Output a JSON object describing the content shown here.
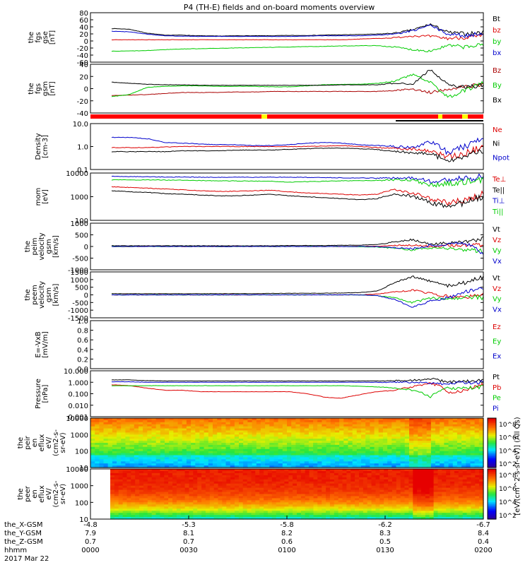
{
  "title": "P4 (TH-E) fields and on-board moments overview",
  "chart_data": [
    {
      "type": "line",
      "panel": "the fgs gse",
      "ylabel": [
        "the",
        "fgs",
        "gse",
        "[nT]"
      ],
      "yticks": [
        "80",
        "60",
        "40",
        "20",
        "0",
        "-20",
        "-40",
        "-60"
      ],
      "ylim": [
        -60,
        90
      ],
      "series": [
        {
          "name": "Bt",
          "color": "#000000",
          "values": [
            42,
            40,
            28,
            22,
            22,
            20,
            19,
            20,
            20,
            20,
            21,
            21,
            22,
            23,
            24,
            25,
            28,
            38,
            55,
            30,
            26,
            30
          ]
        },
        {
          "name": "bz",
          "color": "#dd0000",
          "values": [
            8,
            8,
            8,
            8,
            8,
            8,
            8,
            8,
            8,
            8,
            8,
            8,
            8,
            8,
            10,
            12,
            14,
            20,
            18,
            12,
            15,
            18
          ]
        },
        {
          "name": "by",
          "color": "#00cc00",
          "values": [
            -27,
            -26,
            -25,
            -22,
            -20,
            -19,
            -18,
            -17,
            -16,
            -15,
            -14,
            -13,
            -12,
            -11,
            -10,
            -10,
            -14,
            -22,
            -26,
            -10,
            -14,
            -8
          ]
        },
        {
          "name": "bx",
          "color": "#0000cc",
          "values": [
            34,
            32,
            25,
            20,
            19,
            18,
            18,
            18,
            18,
            18,
            18,
            19,
            20,
            20,
            20,
            22,
            25,
            35,
            52,
            25,
            20,
            28
          ]
        }
      ]
    },
    {
      "type": "line",
      "panel": "the fgs gsm",
      "ylabel": [
        "the",
        "fgs",
        "gsm",
        "[nT]"
      ],
      "yticks": [
        "40",
        "20",
        "0",
        "-20",
        "-40"
      ],
      "ylim": [
        -50,
        45
      ],
      "series": [
        {
          "name": "Bz",
          "color": "#aa0000",
          "values": [
            -16,
            -15,
            -14,
            -12,
            -10,
            -10,
            -10,
            -9,
            -9,
            -8,
            -8,
            -8,
            -8,
            -8,
            -8,
            -8,
            -6,
            -3,
            -10,
            -3,
            2,
            5
          ]
        },
        {
          "name": "By",
          "color": "#00cc00",
          "values": [
            -18,
            -14,
            0,
            2,
            3,
            3,
            2,
            2,
            2,
            1,
            1,
            3,
            5,
            6,
            6,
            8,
            12,
            25,
            10,
            -20,
            -5,
            8
          ]
        },
        {
          "name": "Bx",
          "color": "#000000",
          "values": [
            10,
            8,
            6,
            5,
            5,
            4,
            4,
            4,
            4,
            4,
            4,
            4,
            4,
            5,
            5,
            5,
            8,
            6,
            35,
            5,
            0,
            4
          ]
        }
      ]
    },
    {
      "type": "line",
      "panel": "Density",
      "ylabel": [
        "Density",
        "[cm-3]"
      ],
      "yticks": [
        "10.0",
        "1.0",
        "0.1"
      ],
      "log": true,
      "ylim": [
        0.1,
        10
      ],
      "series": [
        {
          "name": "Ne",
          "color": "#dd0000",
          "values": [
            0.9,
            0.9,
            0.9,
            0.95,
            1.0,
            1.0,
            1.0,
            1.0,
            1.0,
            1.0,
            1.0,
            1.0,
            1.05,
            1.1,
            1.0,
            0.9,
            0.8,
            0.8,
            0.6,
            0.35,
            0.5,
            0.9
          ]
        },
        {
          "name": "Ni",
          "color": "#000000",
          "values": [
            0.6,
            0.6,
            0.6,
            0.6,
            0.65,
            0.65,
            0.65,
            0.7,
            0.7,
            0.7,
            0.75,
            0.8,
            0.85,
            0.85,
            0.8,
            0.75,
            0.6,
            0.55,
            0.45,
            0.25,
            0.35,
            0.7
          ]
        },
        {
          "name": "Npot",
          "color": "#0000cc",
          "values": [
            2.5,
            2.5,
            2.2,
            1.5,
            1.4,
            1.3,
            1.2,
            1.2,
            1.1,
            1.1,
            1.2,
            1.4,
            1.5,
            1.4,
            1.2,
            1.1,
            1.0,
            0.9,
            1.5,
            0.5,
            1.0,
            2.0
          ]
        }
      ]
    },
    {
      "type": "line",
      "panel": "mom",
      "ylabel": [
        "mom",
        "[eV]"
      ],
      "yticks": [
        "10000",
        "1000",
        "100"
      ],
      "log": true,
      "ylim": [
        100,
        12000
      ],
      "series": [
        {
          "name": "Te⊥",
          "color": "#dd0000",
          "values": [
            3000,
            2800,
            2600,
            2400,
            2200,
            2000,
            1900,
            1900,
            2000,
            2100,
            1800,
            1600,
            1500,
            1400,
            1300,
            1400,
            2200,
            1500,
            900,
            600,
            800,
            1500
          ]
        },
        {
          "name": "Te||",
          "color": "#000000",
          "values": [
            2000,
            1800,
            1700,
            1500,
            1400,
            1300,
            1200,
            1200,
            1300,
            1400,
            1200,
            1100,
            1000,
            900,
            800,
            900,
            1500,
            1100,
            600,
            400,
            600,
            1100
          ]
        },
        {
          "name": "Ti⊥",
          "color": "#0000cc",
          "values": [
            8500,
            8400,
            8200,
            8000,
            8000,
            7900,
            7800,
            7800,
            7800,
            7900,
            7800,
            7700,
            7600,
            7400,
            7300,
            7200,
            7300,
            7300,
            5000,
            6000,
            7000,
            8000
          ]
        },
        {
          "name": "Ti||",
          "color": "#00cc00",
          "values": [
            6000,
            6000,
            6000,
            5900,
            5800,
            5600,
            5500,
            5400,
            5300,
            5200,
            4800,
            5000,
            5200,
            5500,
            5600,
            5700,
            5800,
            5900,
            3500,
            4000,
            5000,
            6000
          ]
        }
      ]
    },
    {
      "type": "line",
      "panel": "the peim velocity gsm",
      "ylabel": [
        "the",
        "peim",
        "velocity",
        "gsm",
        "[km/s]"
      ],
      "yticks": [
        "1000",
        "500",
        "0",
        "-500",
        "-1000"
      ],
      "ylim": [
        -1000,
        1000
      ],
      "series": [
        {
          "name": "Vt",
          "color": "#000000",
          "values": [
            30,
            30,
            30,
            30,
            30,
            30,
            30,
            30,
            30,
            30,
            40,
            40,
            40,
            50,
            60,
            80,
            200,
            300,
            100,
            150,
            200,
            350
          ]
        },
        {
          "name": "Vz",
          "color": "#dd0000",
          "values": [
            0,
            0,
            0,
            0,
            0,
            0,
            0,
            0,
            0,
            0,
            0,
            0,
            0,
            0,
            0,
            10,
            50,
            60,
            20,
            30,
            40,
            80
          ]
        },
        {
          "name": "Vy",
          "color": "#00cc00",
          "values": [
            0,
            0,
            0,
            0,
            0,
            0,
            0,
            0,
            0,
            0,
            0,
            0,
            0,
            0,
            -10,
            -20,
            -80,
            -150,
            -50,
            -100,
            -150,
            -200
          ]
        },
        {
          "name": "Vx",
          "color": "#0000cc",
          "values": [
            0,
            0,
            0,
            0,
            0,
            0,
            0,
            0,
            0,
            0,
            0,
            0,
            0,
            0,
            0,
            -10,
            -50,
            -100,
            50,
            100,
            150,
            -300
          ]
        }
      ]
    },
    {
      "type": "line",
      "panel": "the peem velocity gsm",
      "ylabel": [
        "the",
        "peem",
        "velocity",
        "gsm",
        "[km/s]"
      ],
      "yticks": [
        "1500",
        "1000",
        "500",
        "0",
        "-500",
        "-1000",
        "-1500"
      ],
      "ylim": [
        -1500,
        1500
      ],
      "series": [
        {
          "name": "Vt",
          "color": "#000000",
          "values": [
            80,
            80,
            80,
            80,
            80,
            80,
            80,
            80,
            80,
            90,
            100,
            100,
            110,
            120,
            150,
            250,
            800,
            1200,
            900,
            600,
            800,
            1200
          ]
        },
        {
          "name": "Vz",
          "color": "#dd0000",
          "values": [
            0,
            0,
            0,
            0,
            0,
            0,
            0,
            0,
            0,
            0,
            0,
            0,
            0,
            0,
            0,
            50,
            200,
            300,
            100,
            -100,
            -200,
            100
          ]
        },
        {
          "name": "Vy",
          "color": "#00cc00",
          "values": [
            0,
            0,
            0,
            0,
            0,
            0,
            0,
            0,
            0,
            0,
            0,
            0,
            0,
            0,
            0,
            -50,
            -200,
            -500,
            -200,
            -300,
            -100,
            -200
          ]
        },
        {
          "name": "Vx",
          "color": "#0000cc",
          "values": [
            0,
            0,
            0,
            0,
            0,
            0,
            0,
            0,
            0,
            0,
            0,
            0,
            0,
            0,
            0,
            -50,
            -300,
            -800,
            -400,
            -200,
            200,
            400
          ]
        }
      ]
    },
    {
      "type": "line",
      "panel": "E=-VxB",
      "ylabel": [
        "E=-VxB",
        "[mV/m]"
      ],
      "yticks": [
        "1.0",
        "0.8",
        "0.6",
        "0.4",
        "0.2",
        "0.0"
      ],
      "ylim": [
        0,
        1
      ],
      "series": [
        {
          "name": "Ez",
          "color": "#dd0000",
          "values": []
        },
        {
          "name": "Ey",
          "color": "#00cc00",
          "values": []
        },
        {
          "name": "Ex",
          "color": "#0000cc",
          "values": []
        }
      ]
    },
    {
      "type": "line",
      "panel": "Pressure",
      "ylabel": [
        "Pressure",
        "[nPa]"
      ],
      "yticks": [
        "10.000",
        "1.000",
        "0.100",
        "0.010",
        "0.001"
      ],
      "log": true,
      "ylim": [
        0.001,
        10
      ],
      "series": [
        {
          "name": "Pt",
          "color": "#000000",
          "values": [
            1.6,
            1.6,
            1.4,
            1.3,
            1.3,
            1.3,
            1.3,
            1.3,
            1.3,
            1.3,
            1.3,
            1.3,
            1.3,
            1.3,
            1.3,
            1.3,
            1.4,
            1.5,
            2.0,
            1.0,
            1.2,
            1.5
          ]
        },
        {
          "name": "Pb",
          "color": "#dd0000",
          "values": [
            0.6,
            0.5,
            0.3,
            0.2,
            0.2,
            0.15,
            0.15,
            0.15,
            0.15,
            0.15,
            0.15,
            0.1,
            0.05,
            0.04,
            0.08,
            0.15,
            0.2,
            0.4,
            0.8,
            0.1,
            0.2,
            0.6
          ]
        },
        {
          "name": "Pe",
          "color": "#00cc00",
          "values": [
            0.5,
            0.5,
            0.5,
            0.5,
            0.5,
            0.5,
            0.5,
            0.5,
            0.5,
            0.5,
            0.5,
            0.5,
            0.5,
            0.5,
            0.45,
            0.4,
            0.3,
            0.2,
            0.04,
            0.3,
            0.3,
            0.4
          ]
        },
        {
          "name": "Pi",
          "color": "#0000cc",
          "values": [
            1.1,
            1.1,
            1.0,
            1.0,
            1.0,
            1.0,
            1.0,
            1.0,
            1.0,
            1.0,
            1.0,
            1.0,
            1.0,
            1.0,
            1.0,
            1.0,
            1.0,
            1.0,
            0.9,
            0.7,
            0.9,
            1.0
          ]
        }
      ]
    },
    {
      "type": "heatmap",
      "panel": "the peir en eflux",
      "ylabel": [
        "the",
        "peir",
        "en",
        "eflux",
        "eV/",
        "(cm2-s-",
        "sr-eV)"
      ],
      "yticks": [
        "10000",
        "1000",
        "100",
        "10"
      ],
      "log": true
    },
    {
      "type": "heatmap",
      "panel": "the peer en eflux",
      "ylabel": [
        "the",
        "peer",
        "en",
        "eflux",
        "eV/",
        "(cm2-s-",
        "sr-eV)"
      ],
      "yticks": [
        "10000",
        "1000",
        "100",
        "10"
      ],
      "log": true
    }
  ],
  "colorbar": {
    "label": "[eV/(cm^2-s-sr-eV)] (All Qs)",
    "ticks_top": [
      "10^8",
      "10^6",
      "10^4",
      "10^2"
    ],
    "ticks_bottom": [
      "10^8",
      "10^6",
      "10^4",
      "10^2"
    ]
  },
  "x_axis": {
    "the_X-GSM": [
      "-4.8",
      "-5.3",
      "-5.8",
      "-6.2",
      "-6.7"
    ],
    "the_Y-GSM": [
      "7.9",
      "8.1",
      "8.2",
      "8.3",
      "8.4"
    ],
    "the_Z-GSM": [
      "0.7",
      "0.7",
      "0.6",
      "0.5",
      "0.4"
    ],
    "hhmm": [
      "0000",
      "0030",
      "0100",
      "0130",
      "0200"
    ],
    "date": "2017 Mar 22",
    "row_labels": [
      "the_X-GSM",
      "the_Y-GSM",
      "the_Z-GSM",
      "hhmm"
    ]
  }
}
